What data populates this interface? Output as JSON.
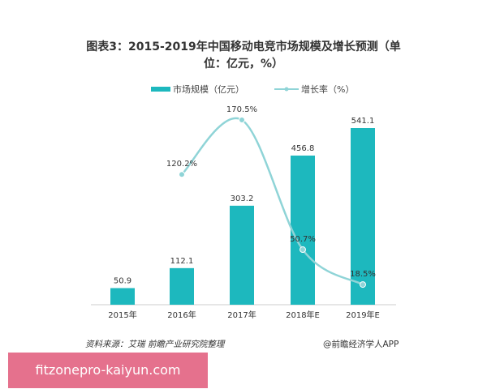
{
  "chart_data": {
    "type": "bar",
    "title": "图表3：2015-2019年中国移动电竞市场规模及增长预测（单位：亿元，%）",
    "categories": [
      "2015年",
      "2016年",
      "2017年",
      "2018年E",
      "2019年E"
    ],
    "series": [
      {
        "name": "市场规模（亿元）",
        "type": "bar",
        "values": [
          50.9,
          112.1,
          303.2,
          456.8,
          541.1
        ],
        "labels": [
          "50.9",
          "112.1",
          "303.2",
          "456.8",
          "541.1"
        ],
        "color": "#1db8be"
      },
      {
        "name": "增长率（%）",
        "type": "line",
        "smooth": true,
        "values": [
          null,
          120.2,
          170.5,
          50.7,
          18.5
        ],
        "labels": [
          "",
          "120.2%",
          "170.5%",
          "50.7%",
          "18.5%"
        ],
        "color": "#8fd4d7"
      }
    ],
    "legend": "top",
    "grid": false
  },
  "source": "资料来源：艾瑞 前瞻产业研究院整理",
  "credit": "@前瞻经济学人APP",
  "watermark": "fitzonepro-kaiyun.com"
}
